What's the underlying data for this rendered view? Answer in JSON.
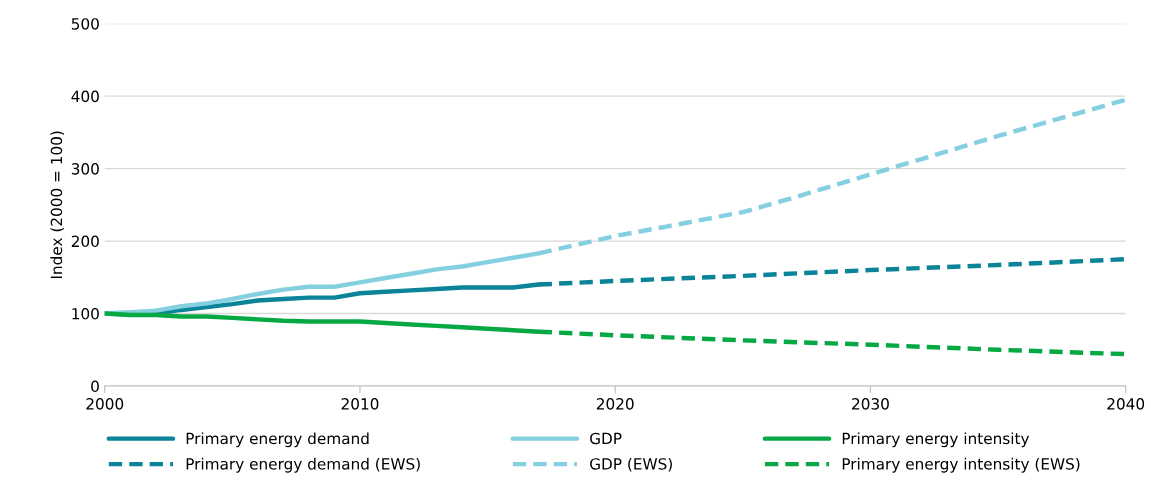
{
  "chart_data": {
    "type": "line",
    "ylabel": "Index (2000 = 100)",
    "xlim": [
      2000,
      2040
    ],
    "xticks": [
      2000,
      2010,
      2020,
      2030,
      2040
    ],
    "ylim": [
      0,
      500
    ],
    "yticks": [
      0,
      100,
      200,
      300,
      400,
      500
    ],
    "grid": "y",
    "legend": "bottom",
    "marker": "none",
    "series": [
      {
        "name": "Primary energy demand",
        "color": "#0b8499",
        "line_style": "solid",
        "x": [
          2000,
          2001,
          2002,
          2003,
          2004,
          2005,
          2006,
          2007,
          2008,
          2009,
          2010,
          2011,
          2012,
          2013,
          2014,
          2015,
          2016,
          2017
        ],
        "values": [
          100,
          99,
          100,
          105,
          109,
          113,
          118,
          120,
          122,
          122,
          128,
          130,
          132,
          134,
          136,
          136,
          136,
          140
        ]
      },
      {
        "name": "GDP",
        "color": "#84d0e1",
        "line_style": "solid",
        "x": [
          2000,
          2001,
          2002,
          2003,
          2004,
          2005,
          2006,
          2007,
          2008,
          2009,
          2010,
          2011,
          2012,
          2013,
          2014,
          2015,
          2016,
          2017
        ],
        "values": [
          100,
          102,
          104,
          110,
          114,
          120,
          127,
          133,
          137,
          137,
          143,
          149,
          155,
          161,
          165,
          171,
          177,
          183
        ]
      },
      {
        "name": "Primary energy intensity",
        "color": "#05a843",
        "line_style": "solid",
        "x": [
          2000,
          2001,
          2002,
          2003,
          2004,
          2005,
          2006,
          2007,
          2008,
          2009,
          2010,
          2011,
          2012,
          2013,
          2014,
          2015,
          2016,
          2017
        ],
        "values": [
          100,
          98,
          98,
          96,
          96,
          94,
          92,
          90,
          89,
          89,
          89,
          87,
          85,
          83,
          81,
          79,
          77,
          75
        ]
      },
      {
        "name": "Primary energy demand (EWS)",
        "color": "#0b8499",
        "line_style": "dashed",
        "x": [
          2017,
          2020,
          2025,
          2030,
          2035,
          2040
        ],
        "values": [
          140,
          145,
          152,
          160,
          167,
          175
        ]
      },
      {
        "name": "GDP (EWS)",
        "color": "#84d0e1",
        "line_style": "dashed",
        "x": [
          2017,
          2020,
          2022,
          2025,
          2027,
          2030,
          2035,
          2040
        ],
        "values": [
          183,
          207,
          220,
          240,
          260,
          292,
          345,
          395
        ]
      },
      {
        "name": "Primary energy intensity (EWS)",
        "color": "#05a843",
        "line_style": "dashed",
        "x": [
          2017,
          2020,
          2025,
          2030,
          2035,
          2040
        ],
        "values": [
          75,
          70,
          63,
          57,
          50,
          44
        ]
      }
    ]
  }
}
